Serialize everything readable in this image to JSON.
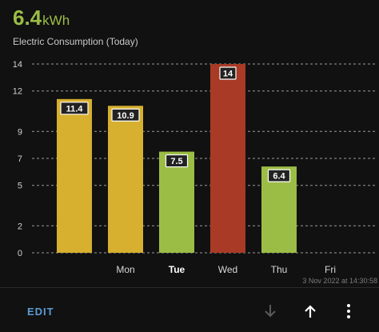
{
  "header": {
    "value": "6.4",
    "unit": "kWh",
    "subtitle": "Electric Consumption (Today)"
  },
  "chart_data": {
    "type": "bar",
    "categories": [
      "",
      "Mon",
      "Tue",
      "Wed",
      "Thu",
      "Fri"
    ],
    "highlight_category": "Tue",
    "values": [
      11.4,
      10.9,
      7.5,
      14,
      6.4,
      null
    ],
    "value_labels": [
      "11.4",
      "10.9",
      "7.5",
      "14",
      "6.4",
      ""
    ],
    "bar_colors": [
      "#d6b02e",
      "#d6b02e",
      "#9bbd45",
      "#a83a26",
      "#9bbd45",
      ""
    ],
    "ylim": [
      0,
      14
    ],
    "yticks": [
      0,
      2,
      5,
      7,
      9,
      12,
      14
    ],
    "grid": true,
    "title": "",
    "xlabel": "",
    "ylabel": ""
  },
  "timestamp": "3 Nov 2022 at 14:30:58",
  "footer": {
    "edit_label": "EDIT",
    "icons": [
      "arrow-down-icon",
      "arrow-up-icon",
      "more-vert-icon"
    ]
  },
  "colors": {
    "background": "#111111",
    "accent": "#9bbd45",
    "link": "#5b9bd5"
  }
}
